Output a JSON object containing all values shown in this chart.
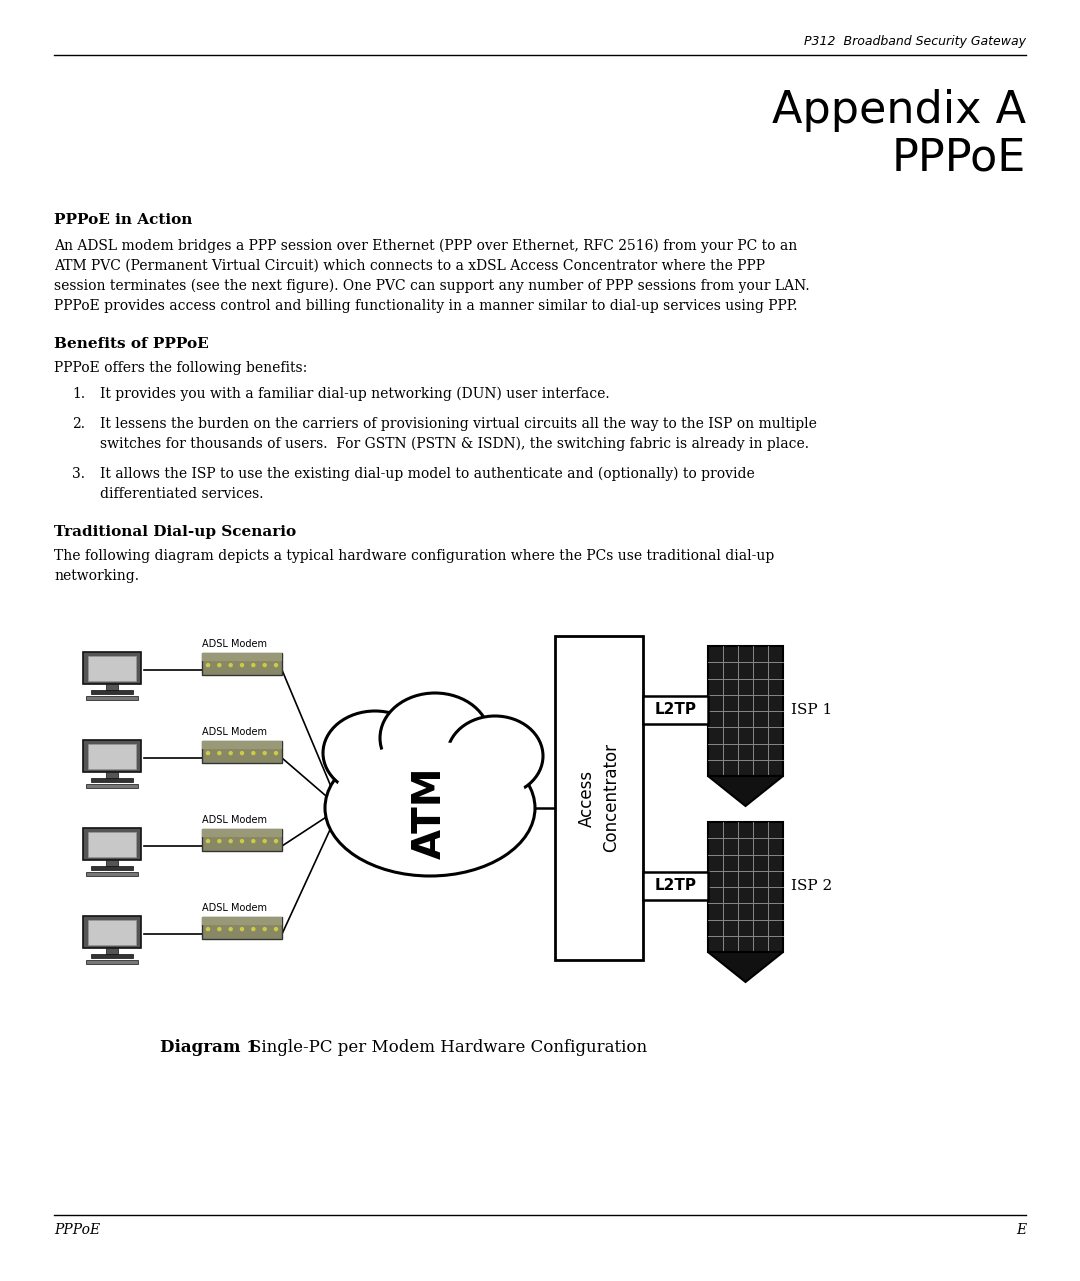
{
  "header_text": "P312  Broadband Security Gateway",
  "title_line1": "Appendix A",
  "title_line2": "PPPoE",
  "section1_heading": "PPPoE in Action",
  "section1_body_lines": [
    "An ADSL modem bridges a PPP session over Ethernet (PPP over Ethernet, RFC 2516) from your PC to an",
    "ATM PVC (Permanent Virtual Circuit) which connects to a xDSL Access Concentrator where the PPP",
    "session terminates (see the next figure). One PVC can support any number of PPP sessions from your LAN.",
    "PPPoE provides access control and billing functionality in a manner similar to dial-up services using PPP."
  ],
  "section2_heading": "Benefits of PPPoE",
  "section2_intro": "PPPoE offers the following benefits:",
  "benefit1": "It provides you with a familiar dial-up networking (DUN) user interface.",
  "benefit2_lines": [
    "It lessens the burden on the carriers of provisioning virtual circuits all the way to the ISP on multiple",
    "switches for thousands of users.  For GSTN (PSTN & ISDN), the switching fabric is already in place."
  ],
  "benefit3_lines": [
    "It allows the ISP to use the existing dial-up model to authenticate and (optionally) to provide",
    "differentiated services."
  ],
  "section3_heading": "Traditional Dial-up Scenario",
  "section3_body_lines": [
    "The following diagram depicts a typical hardware configuration where the PCs use traditional dial-up",
    "networking."
  ],
  "diagram_caption_bold": "Diagram 1",
  "diagram_caption_normal": "Single-PC per Modem Hardware Configuration",
  "footer_left": "PPPoE",
  "footer_right": "E",
  "bg_color": "#ffffff",
  "text_color": "#000000",
  "modem_body_color": "#888866",
  "modem_strip_color": "#999977",
  "modem_dot_color": "#cccc44",
  "building_color": "#222222",
  "building_line_color": "#888888"
}
